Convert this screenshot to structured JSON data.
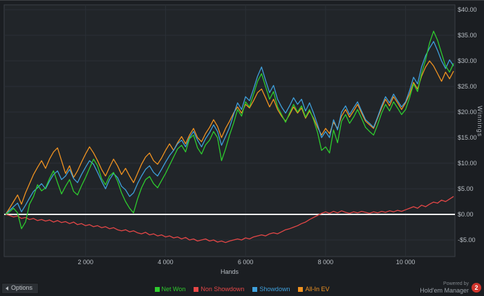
{
  "ui": {
    "options_label": "Options",
    "powered_by": "Powered by",
    "brand": "Hold'em Manager",
    "brand_badge": "2"
  },
  "colors": {
    "background": "#1b1e22",
    "plot_background": "#212529",
    "gridline": "#2b3036",
    "plot_border": "#3b4046",
    "zero_line": "#eeeeee",
    "tick_text": "#b9bfc5",
    "net_won": "#2ecc2e",
    "non_showdown": "#e64747",
    "showdown": "#3fa0dc",
    "all_in_ev": "#f19321",
    "badge_red": "#d0342c"
  },
  "chart_data": {
    "type": "line",
    "title": "",
    "xlabel": "Hands",
    "ylabel": "Winnings",
    "grid": true,
    "legend_position": "bottom",
    "x_start": 0,
    "x_step": 100,
    "x_max": 11200,
    "ylim": [
      -7.5,
      41
    ],
    "zero_line": 0,
    "draw_order": [
      1,
      3,
      2,
      0
    ],
    "x_ticks": [
      {
        "value": 2000,
        "label": "2 000"
      },
      {
        "value": 4000,
        "label": "4 000"
      },
      {
        "value": 6000,
        "label": "6 000"
      },
      {
        "value": 8000,
        "label": "8 000"
      },
      {
        "value": 10000,
        "label": "10 000"
      }
    ],
    "y_ticks": [
      {
        "value": 40,
        "label": "$40.00"
      },
      {
        "value": 35,
        "label": "$35.00"
      },
      {
        "value": 30,
        "label": "$30.00"
      },
      {
        "value": 25,
        "label": "$25.00"
      },
      {
        "value": 20,
        "label": "$20.00"
      },
      {
        "value": 15,
        "label": "$15.00"
      },
      {
        "value": 10,
        "label": "$10.00"
      },
      {
        "value": 5,
        "label": "$5.00"
      },
      {
        "value": 0,
        "label": "$0.00"
      },
      {
        "value": -5,
        "label": "-$5.00"
      }
    ],
    "series": [
      {
        "name": "Net Won",
        "color": "#2ecc2e",
        "values": [
          0.0,
          0.5,
          1.2,
          0.3,
          -2.8,
          -1.5,
          2.0,
          3.5,
          5.8,
          4.6,
          5.2,
          7.0,
          8.5,
          6.2,
          4.0,
          5.5,
          6.8,
          4.5,
          3.8,
          5.6,
          7.2,
          9.0,
          10.8,
          9.5,
          7.0,
          5.8,
          7.5,
          8.2,
          6.5,
          4.2,
          2.5,
          1.2,
          0.3,
          3.0,
          5.2,
          6.8,
          7.4,
          6.0,
          5.2,
          6.6,
          8.0,
          9.6,
          11.2,
          12.8,
          13.5,
          12.2,
          14.8,
          15.5,
          13.0,
          11.8,
          13.6,
          14.5,
          16.2,
          15.0,
          10.5,
          12.8,
          15.5,
          17.8,
          20.5,
          19.2,
          22.0,
          21.0,
          23.5,
          26.0,
          27.5,
          25.0,
          22.5,
          24.0,
          21.0,
          19.5,
          18.0,
          19.8,
          21.5,
          20.0,
          21.2,
          19.0,
          20.5,
          18.5,
          16.0,
          12.5,
          13.2,
          12.0,
          16.5,
          14.0,
          18.2,
          19.5,
          17.8,
          19.0,
          20.5,
          18.8,
          17.0,
          16.2,
          15.5,
          17.5,
          19.8,
          21.5,
          20.2,
          22.0,
          20.8,
          19.5,
          20.5,
          22.8,
          25.5,
          24.0,
          27.5,
          30.2,
          33.5,
          35.8,
          34.0,
          31.5,
          29.0,
          27.8,
          29.5
        ]
      },
      {
        "name": "Non Showdown",
        "color": "#e64747",
        "values": [
          0.0,
          -0.2,
          -0.5,
          -0.3,
          -0.8,
          -0.6,
          -1.0,
          -0.8,
          -1.2,
          -1.0,
          -1.3,
          -1.1,
          -1.5,
          -1.2,
          -1.6,
          -1.4,
          -1.8,
          -1.5,
          -2.0,
          -1.8,
          -2.2,
          -2.0,
          -2.4,
          -2.2,
          -2.6,
          -2.4,
          -2.8,
          -2.6,
          -3.0,
          -3.2,
          -3.0,
          -3.4,
          -3.2,
          -3.6,
          -3.8,
          -3.5,
          -4.0,
          -3.8,
          -4.2,
          -4.0,
          -4.4,
          -4.2,
          -4.6,
          -4.4,
          -4.8,
          -4.5,
          -5.0,
          -4.8,
          -5.2,
          -5.0,
          -4.8,
          -5.2,
          -5.0,
          -5.4,
          -5.2,
          -5.5,
          -5.2,
          -5.0,
          -4.8,
          -5.0,
          -4.6,
          -4.8,
          -4.4,
          -4.2,
          -4.0,
          -4.2,
          -3.8,
          -3.6,
          -3.8,
          -3.4,
          -3.0,
          -2.8,
          -2.5,
          -2.2,
          -1.8,
          -1.5,
          -1.0,
          -0.6,
          -0.2,
          0.2,
          0.5,
          0.2,
          0.6,
          0.3,
          0.7,
          0.4,
          0.2,
          0.5,
          0.3,
          0.6,
          0.4,
          0.2,
          0.5,
          0.3,
          0.6,
          0.4,
          0.7,
          0.5,
          0.8,
          0.6,
          0.9,
          1.2,
          1.5,
          1.2,
          1.8,
          1.5,
          2.0,
          2.4,
          2.2,
          2.8,
          2.5,
          3.0,
          3.5
        ]
      },
      {
        "name": "Showdown",
        "color": "#3fa0dc",
        "values": [
          0.0,
          0.8,
          1.5,
          2.2,
          0.5,
          1.8,
          3.2,
          4.5,
          5.2,
          6.0,
          5.0,
          6.5,
          7.8,
          8.5,
          6.8,
          7.5,
          8.8,
          7.0,
          6.2,
          7.8,
          9.2,
          10.5,
          9.8,
          8.2,
          6.5,
          5.0,
          6.8,
          8.0,
          7.2,
          5.5,
          4.8,
          3.5,
          4.2,
          6.0,
          7.5,
          8.8,
          9.5,
          8.2,
          7.5,
          8.8,
          10.2,
          11.5,
          12.5,
          13.8,
          14.5,
          13.2,
          15.0,
          16.2,
          14.5,
          13.2,
          14.8,
          16.0,
          17.5,
          16.2,
          13.5,
          15.2,
          17.0,
          19.5,
          21.8,
          20.5,
          23.0,
          22.2,
          24.5,
          27.0,
          28.8,
          26.2,
          23.8,
          25.2,
          22.5,
          21.0,
          19.8,
          21.2,
          22.8,
          21.5,
          22.5,
          20.2,
          21.8,
          19.8,
          17.5,
          15.0,
          16.2,
          15.0,
          18.5,
          16.5,
          20.0,
          21.2,
          19.5,
          20.8,
          22.0,
          20.2,
          18.5,
          17.8,
          17.0,
          19.0,
          21.2,
          23.0,
          21.8,
          23.5,
          22.2,
          21.0,
          22.0,
          24.2,
          26.8,
          25.5,
          28.8,
          31.0,
          32.5,
          33.8,
          32.0,
          30.0,
          28.5,
          30.2,
          29.0
        ]
      },
      {
        "name": "All-In EV",
        "color": "#f19321",
        "values": [
          0.0,
          1.2,
          2.5,
          3.8,
          2.0,
          4.2,
          6.0,
          7.8,
          9.2,
          10.5,
          9.0,
          10.8,
          12.2,
          13.0,
          10.5,
          8.0,
          9.5,
          7.2,
          8.5,
          10.2,
          11.8,
          13.2,
          12.0,
          10.5,
          8.8,
          7.5,
          9.2,
          10.8,
          9.5,
          7.8,
          9.0,
          7.5,
          6.2,
          8.0,
          9.8,
          11.2,
          12.0,
          10.5,
          9.8,
          11.0,
          12.5,
          13.8,
          12.5,
          14.0,
          15.2,
          13.8,
          15.5,
          16.8,
          15.0,
          14.2,
          15.8,
          17.0,
          18.5,
          17.2,
          15.0,
          16.8,
          18.2,
          19.8,
          21.0,
          19.8,
          21.5,
          20.8,
          22.2,
          23.8,
          24.5,
          22.8,
          21.0,
          22.5,
          20.5,
          19.2,
          18.2,
          19.5,
          21.0,
          19.8,
          20.8,
          18.8,
          20.2,
          18.8,
          17.0,
          15.5,
          16.8,
          15.8,
          18.0,
          16.8,
          19.2,
          20.5,
          19.0,
          20.2,
          21.5,
          19.8,
          18.2,
          17.5,
          16.8,
          18.8,
          20.8,
          22.5,
          21.2,
          23.0,
          21.8,
          20.5,
          21.8,
          23.5,
          25.8,
          24.5,
          27.0,
          28.8,
          30.0,
          29.0,
          27.5,
          26.0,
          27.8,
          26.5,
          28.0
        ]
      }
    ]
  }
}
